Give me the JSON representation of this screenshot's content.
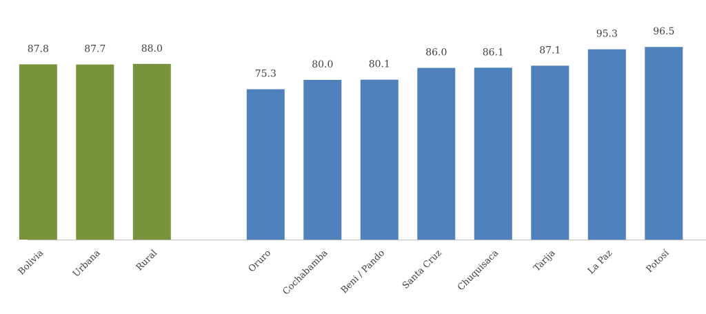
{
  "chart_data": {
    "type": "bar",
    "title": "",
    "xlabel": "",
    "ylabel": "",
    "ylim": [
      0,
      100
    ],
    "grid": false,
    "legend": "none",
    "categories": [
      "Bolivia",
      "Urbana",
      "Rural",
      "",
      "Oruro",
      "Cochabamba",
      "Beni / Pando",
      "Santa Cruz",
      "Chuquisaca",
      "Tarija",
      "La Paz",
      "Potosí"
    ],
    "series": [
      {
        "values": [
          87.8,
          87.7,
          88.0,
          null,
          75.3,
          80.0,
          80.1,
          86.0,
          86.1,
          87.1,
          95.3,
          96.5
        ],
        "labels": [
          "87.8",
          "87.7",
          "88.0",
          "",
          "75.3",
          "80.0",
          "80.1",
          "86.0",
          "86.1",
          "87.1",
          "95.3",
          "96.5"
        ],
        "colors": [
          "#77933c",
          "#77933c",
          "#77933c",
          "",
          "#4f81bd",
          "#4f81bd",
          "#4f81bd",
          "#4f81bd",
          "#4f81bd",
          "#4f81bd",
          "#4f81bd",
          "#4f81bd"
        ]
      }
    ]
  },
  "colors": {
    "national_area": "#77933c",
    "departments": "#4f81bd",
    "axis": "#bfbfbf",
    "text": "#404040"
  }
}
